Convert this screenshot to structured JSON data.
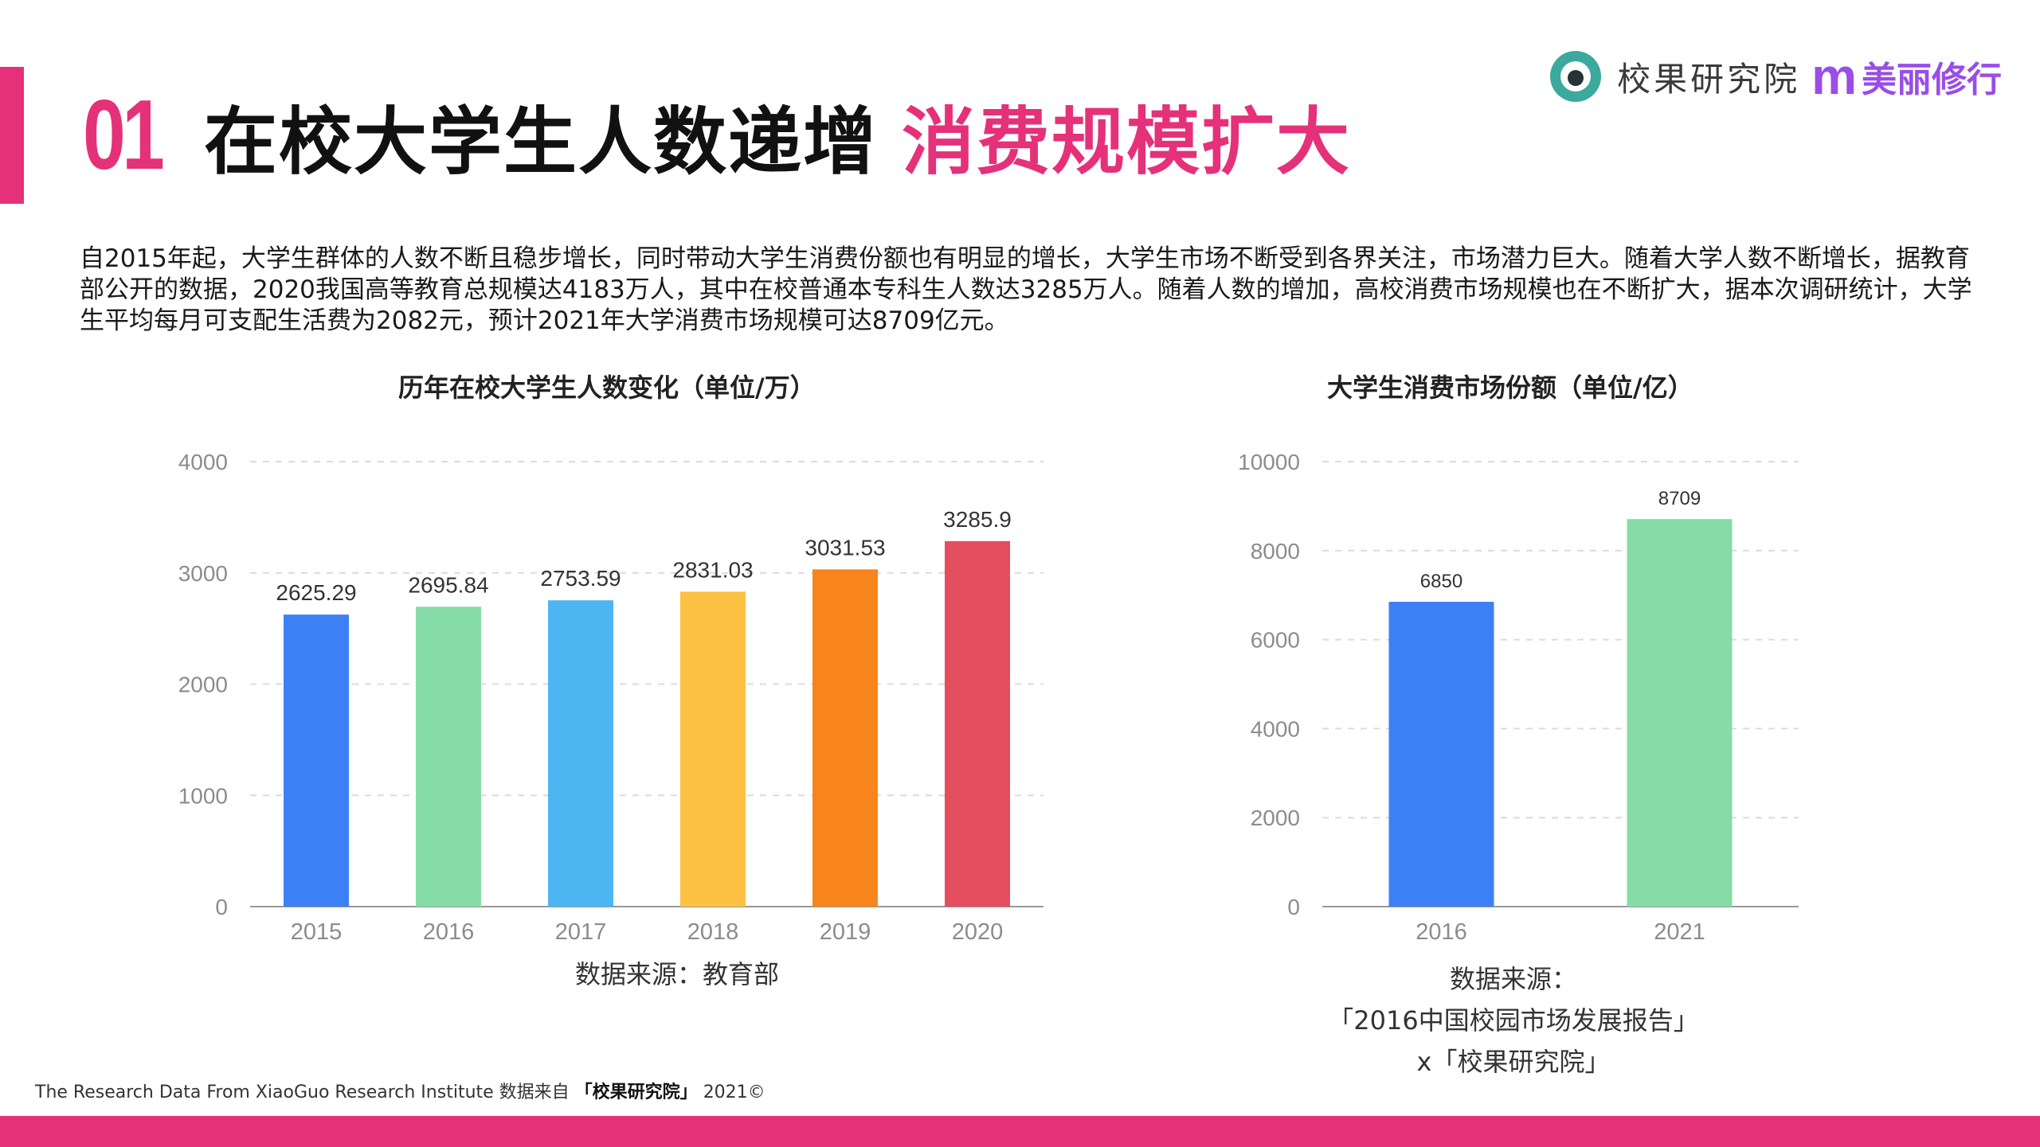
{
  "header": {
    "number": "01",
    "title_main": "在校大学生人数递增",
    "title_accent": "消费规模扩大",
    "brand1": "校果研究院",
    "brand2_mark": "m",
    "brand2": "美丽修行"
  },
  "intro": "自2015年起，大学生群体的人数不断且稳步增长，同时带动大学生消费份额也有明显的增长，大学生市场不断受到各界关注，市场潜力巨大。随着大学人数不断增长，据教育部公开的数据，2020我国高等教育总规模达4183万人，其中在校普通本专科生人数达3285万人。随着人数的增加，高校消费市场规模也在不断扩大，据本次调研统计，大学生平均每月可支配生活费为2082元，预计2021年大学消费市场规模可达8709亿元。",
  "colors": {
    "accent": "#e5317a",
    "brand_green": "#3ba99c",
    "brand_purple": "#9b4de8"
  },
  "chart_data": [
    {
      "type": "bar",
      "title": "历年在校大学生人数变化（单位/万）",
      "categories": [
        "2015",
        "2016",
        "2017",
        "2018",
        "2019",
        "2020"
      ],
      "values": [
        2625.29,
        2695.84,
        2753.59,
        2831.03,
        3031.53,
        3285.9
      ],
      "labels": [
        "2625.29",
        "2695.84",
        "2753.59",
        "2831.03",
        "3031.53",
        "3285.9"
      ],
      "colors": [
        "#3d7ff5",
        "#86dca6",
        "#4db6f2",
        "#fdc243",
        "#f8841e",
        "#e44d5e"
      ],
      "ylim": [
        0,
        4000
      ],
      "yticks": [
        "0",
        "1000",
        "2000",
        "3000",
        "4000"
      ],
      "grid": true,
      "source": "数据来源：教育部"
    },
    {
      "type": "bar",
      "title": "大学生消费市场份额（单位/亿）",
      "categories": [
        "2016",
        "2021"
      ],
      "values": [
        6850,
        8709
      ],
      "labels": [
        "6850",
        "8709"
      ],
      "colors": [
        "#3d7ff5",
        "#86dca6"
      ],
      "ylim": [
        0,
        10000
      ],
      "yticks": [
        "0",
        "2000",
        "4000",
        "6000",
        "8000",
        "10000"
      ],
      "grid": true,
      "source_lines": [
        "数据来源：",
        "「2016中国校园市场发展报告」",
        "x「校果研究院」"
      ]
    }
  ],
  "footer": {
    "prefix": "The Research Data From XiaoGuo Research Institute 数据来自",
    "brand": "「校果研究院」",
    "suffix": "2021©"
  }
}
